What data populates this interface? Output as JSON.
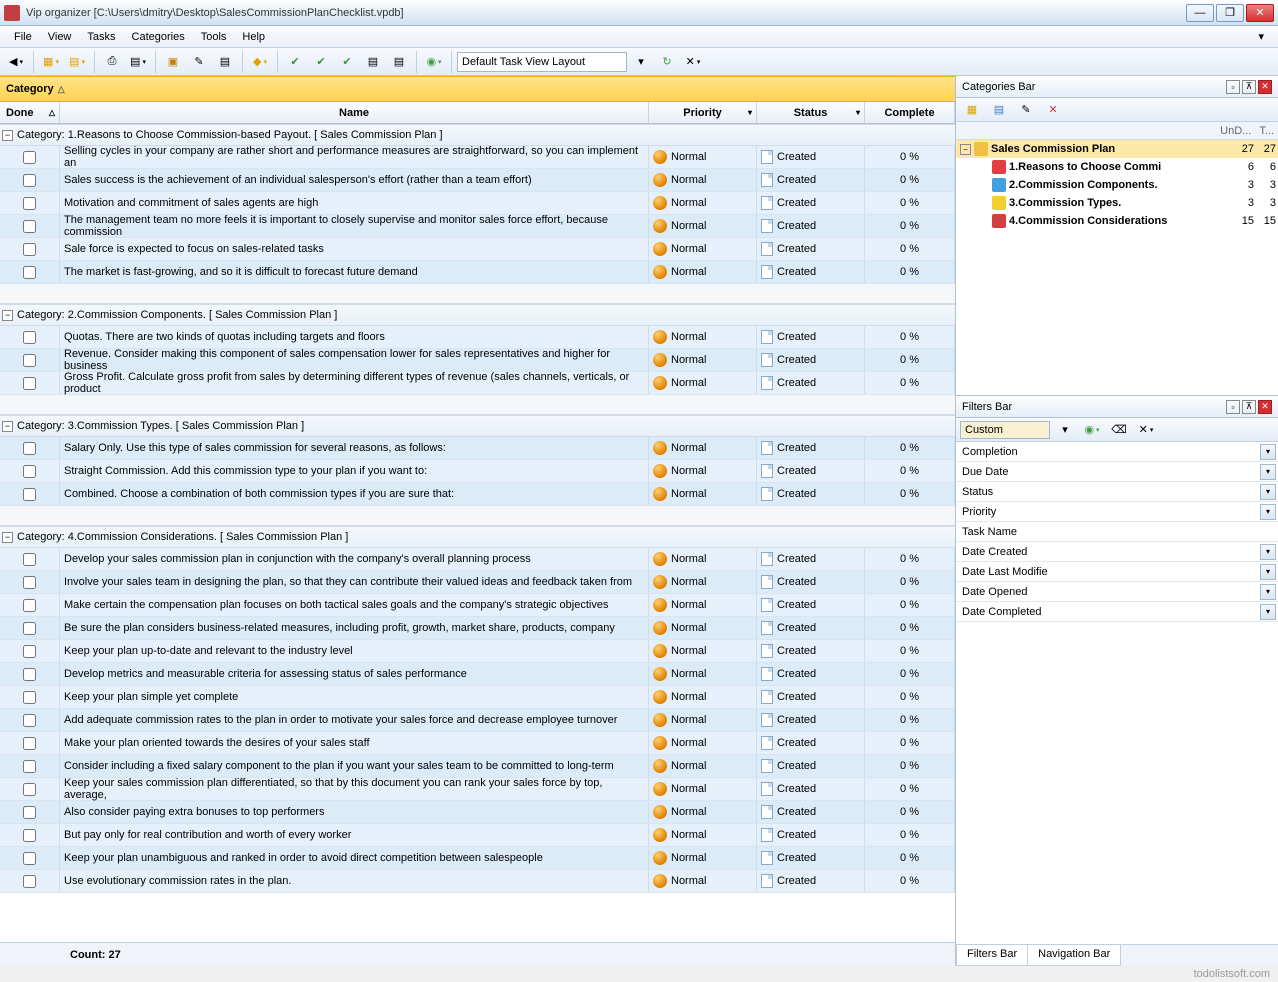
{
  "window": {
    "title": "Vip organizer [C:\\Users\\dmitry\\Desktop\\SalesCommissionPlanChecklist.vpdb]"
  },
  "menu": [
    "File",
    "View",
    "Tasks",
    "Categories",
    "Tools",
    "Help"
  ],
  "toolbar": {
    "layout_combo": "Default Task View Layout"
  },
  "group_by": {
    "label": "Category"
  },
  "columns": {
    "done": "Done",
    "name": "Name",
    "priority": "Priority",
    "status": "Status",
    "complete": "Complete"
  },
  "priority_label": "Normal",
  "status_label": "Created",
  "complete_label": "0 %",
  "categories": [
    {
      "title": "Category: 1.Reasons to Choose Commission-based Payout.    [ Sales Commission Plan ]",
      "tasks": [
        "Selling cycles in your company are rather short and performance measures are straightforward, so you can implement an",
        "Sales success is the achievement of an individual salesperson's effort (rather than a team effort)",
        "Motivation and commitment of sales agents are high",
        "The management team no more feels it is important to closely supervise and monitor sales force effort, because commission",
        "Sale force is expected to focus on sales-related tasks",
        "The market is fast-growing, and so it is difficult to forecast future demand"
      ]
    },
    {
      "title": "Category: 2.Commission Components.    [ Sales Commission Plan ]",
      "tasks": [
        "Quotas. There are two kinds of quotas including targets and floors",
        "Revenue. Consider making this component of sales compensation lower for sales representatives and higher for business",
        "Gross Profit. Calculate gross profit from sales by determining different types of revenue (sales channels, verticals, or product"
      ]
    },
    {
      "title": "Category: 3.Commission Types.    [ Sales Commission Plan ]",
      "tasks": [
        "Salary Only. Use this type of sales commission for several reasons, as follows:",
        "Straight Commission. Add this commission type to your plan if you want to:",
        "Combined. Choose a combination of both commission types if you are sure that:"
      ]
    },
    {
      "title": "Category: 4.Commission Considerations.    [ Sales Commission Plan ]",
      "tasks": [
        "Develop your sales commission plan in conjunction with the company's overall planning process",
        "Involve your sales team in designing the plan, so that they can contribute their valued ideas and feedback taken from",
        "Make certain the compensation plan focuses on both tactical sales goals and the company's strategic objectives",
        "Be sure the plan considers business-related measures, including profit, growth, market share, products, company",
        "Keep your plan up-to-date and relevant to the industry level",
        "Develop metrics and measurable criteria for assessing status of sales performance",
        "Keep your plan simple yet complete",
        "Add adequate commission rates to the plan in order to motivate your sales force and decrease employee turnover",
        "Make your plan oriented towards the desires of your sales staff",
        "Consider including a fixed salary component to the plan if you want your sales team to be committed to long-term",
        "Keep your sales commission plan differentiated, so that by this document you can rank your sales force by top, average,",
        "Also consider paying extra bonuses to top performers",
        "But pay only for real contribution and worth of every worker",
        "Keep your plan unambiguous and ranked in order to avoid direct competition between salespeople",
        "Use evolutionary commission rates in the plan."
      ]
    }
  ],
  "footer": {
    "count_label": "Count:  27"
  },
  "right": {
    "categories_title": "Categories Bar",
    "tree_header": {
      "c1": "UnD...",
      "c2": "T..."
    },
    "tree": [
      {
        "level": 0,
        "exp": true,
        "icon": "#f0c040",
        "label": "Sales Commission Plan",
        "bold": true,
        "n1": "27",
        "n2": "27",
        "sel": true
      },
      {
        "level": 1,
        "icon": "#e04040",
        "label": "1.Reasons to Choose Commi",
        "bold": true,
        "n1": "6",
        "n2": "6"
      },
      {
        "level": 1,
        "icon": "#40a0e0",
        "label": "2.Commission Components.",
        "bold": true,
        "n1": "3",
        "n2": "3"
      },
      {
        "level": 1,
        "icon": "#f0d030",
        "label": "3.Commission Types.",
        "bold": true,
        "n1": "3",
        "n2": "3"
      },
      {
        "level": 1,
        "icon": "#d04040",
        "label": "4.Commission Considerations",
        "bold": true,
        "n1": "15",
        "n2": "15"
      }
    ],
    "filters_title": "Filters Bar",
    "filters_combo": "Custom",
    "filters": [
      {
        "label": "Completion",
        "dd": true
      },
      {
        "label": "Due Date",
        "dd": true
      },
      {
        "label": "Status",
        "dd": true
      },
      {
        "label": "Priority",
        "dd": true
      },
      {
        "label": "Task Name",
        "dd": false
      },
      {
        "label": "Date Created",
        "dd": true
      },
      {
        "label": "Date Last Modifie",
        "dd": true
      },
      {
        "label": "Date Opened",
        "dd": true
      },
      {
        "label": "Date Completed",
        "dd": true
      }
    ],
    "tabs": [
      "Filters Bar",
      "Navigation Bar"
    ]
  },
  "watermark": "todolistsoft.com"
}
